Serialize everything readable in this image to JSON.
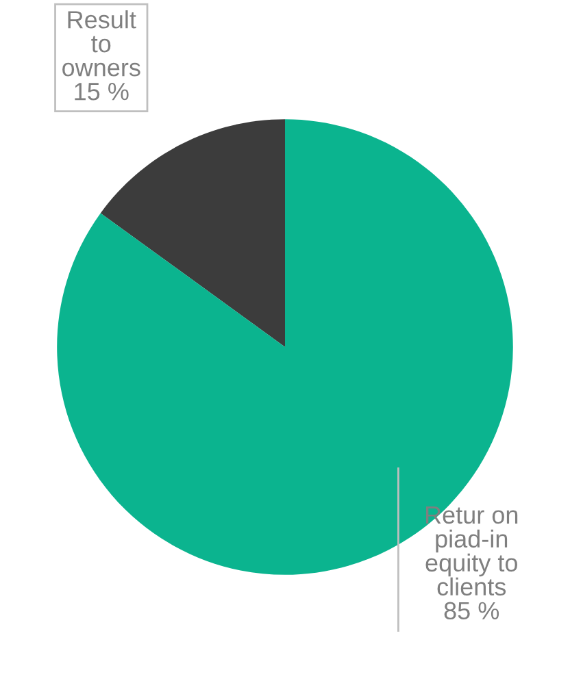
{
  "chart_data": {
    "type": "pie",
    "categories": [
      "Result to owners",
      "Retur on piad-in equity to clients"
    ],
    "values": [
      15,
      85
    ],
    "colors": [
      "#3c3c3c",
      "#0bb48f"
    ],
    "value_labels": [
      "15 %",
      "85 %"
    ]
  }
}
